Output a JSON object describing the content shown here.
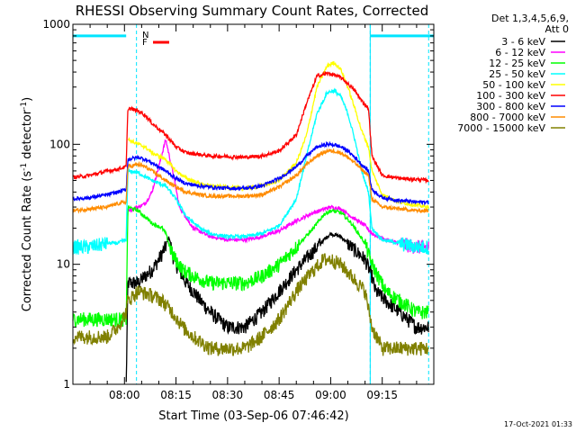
{
  "chart_data": {
    "type": "line",
    "title": "RHESSI Observing Summary Count Rates, Corrected",
    "xlabel": "Start Time (03-Sep-06 07:46:42)",
    "ylabel_parts": [
      "Corrected Count Rate (s",
      "-1",
      " detector",
      "-1",
      ")"
    ],
    "timestamp": "17-Oct-2021 01:33",
    "y_scale": "log",
    "ylim": [
      1,
      1000
    ],
    "xlim_minutes": [
      465,
      570
    ],
    "y_ticks": [
      {
        "v": 1,
        "label": "1"
      },
      {
        "v": 10,
        "label": "10"
      },
      {
        "v": 100,
        "label": "100"
      },
      {
        "v": 1000,
        "label": "1000"
      }
    ],
    "x_ticks": [
      {
        "t": 480,
        "label": "08:00"
      },
      {
        "t": 495,
        "label": "08:15"
      },
      {
        "t": 510,
        "label": "08:30"
      },
      {
        "t": 525,
        "label": "08:45"
      },
      {
        "t": 540,
        "label": "09:00"
      },
      {
        "t": 555,
        "label": "09:15"
      }
    ],
    "legend_header": [
      "Det 1,3,4,5,6,9,",
      "Att 0"
    ],
    "flags": [
      {
        "label": "N",
        "color": "#00e5ff"
      },
      {
        "label": "F",
        "color": "#ff0000"
      }
    ],
    "eclipse_bars": [
      {
        "t0": 465,
        "t1": 480.5
      },
      {
        "t0": 551.5,
        "t1": 570
      }
    ],
    "eclipse_level": 800,
    "dashed_markers": [
      483.5,
      551.5,
      568.5
    ],
    "solid_markers": [
      465,
      551.5
    ],
    "series": [
      {
        "name": "3 - 6 keV",
        "color": "#000000",
        "points": [
          [
            480.5,
            1
          ],
          [
            481,
            7
          ],
          [
            484,
            7
          ],
          [
            486,
            8
          ],
          [
            488,
            9
          ],
          [
            490,
            11
          ],
          [
            492,
            14
          ],
          [
            493,
            17
          ],
          [
            494,
            12
          ],
          [
            495,
            10
          ],
          [
            498,
            7
          ],
          [
            500,
            6
          ],
          [
            502,
            5
          ],
          [
            505,
            4
          ],
          [
            510,
            3
          ],
          [
            515,
            3
          ],
          [
            520,
            4
          ],
          [
            525,
            6
          ],
          [
            530,
            9
          ],
          [
            535,
            13
          ],
          [
            538,
            16
          ],
          [
            540,
            18
          ],
          [
            543,
            17
          ],
          [
            546,
            14
          ],
          [
            550,
            11
          ],
          [
            552,
            8
          ],
          [
            553,
            6
          ],
          [
            556,
            5
          ],
          [
            560,
            4
          ],
          [
            565,
            3
          ],
          [
            568.5,
            3
          ]
        ]
      },
      {
        "name": "6 - 12 keV",
        "color": "#ff00ff",
        "points": [
          [
            481,
            28
          ],
          [
            484,
            30
          ],
          [
            486,
            32
          ],
          [
            488,
            40
          ],
          [
            490,
            65
          ],
          [
            492,
            110
          ],
          [
            494,
            60
          ],
          [
            496,
            30
          ],
          [
            500,
            20
          ],
          [
            505,
            17
          ],
          [
            510,
            16
          ],
          [
            515,
            16
          ],
          [
            520,
            17
          ],
          [
            525,
            19
          ],
          [
            530,
            23
          ],
          [
            535,
            27
          ],
          [
            540,
            30
          ],
          [
            543,
            29
          ],
          [
            546,
            25
          ],
          [
            550,
            21
          ],
          [
            552,
            18
          ],
          [
            556,
            16
          ],
          [
            560,
            15
          ],
          [
            565,
            14
          ],
          [
            568.5,
            14
          ]
        ]
      },
      {
        "name": "12 - 25 keV",
        "color": "#00ff00",
        "points": [
          [
            465,
            3.5
          ],
          [
            470,
            3.5
          ],
          [
            475,
            3.5
          ],
          [
            478,
            3.5
          ],
          [
            480.5,
            3.5
          ],
          [
            481,
            30
          ],
          [
            484,
            28
          ],
          [
            488,
            22
          ],
          [
            491,
            20
          ],
          [
            492,
            18
          ],
          [
            494,
            12
          ],
          [
            497,
            9
          ],
          [
            500,
            8
          ],
          [
            505,
            7
          ],
          [
            510,
            7
          ],
          [
            515,
            7
          ],
          [
            520,
            8
          ],
          [
            525,
            10
          ],
          [
            530,
            14
          ],
          [
            535,
            20
          ],
          [
            538,
            26
          ],
          [
            540,
            28
          ],
          [
            543,
            27
          ],
          [
            546,
            22
          ],
          [
            550,
            15
          ],
          [
            552,
            10
          ],
          [
            556,
            6
          ],
          [
            560,
            5
          ],
          [
            565,
            4
          ],
          [
            568.5,
            4
          ]
        ]
      },
      {
        "name": "25 - 50 keV",
        "color": "#00ffff",
        "points": [
          [
            465,
            14
          ],
          [
            470,
            14
          ],
          [
            475,
            15
          ],
          [
            478,
            15
          ],
          [
            480.5,
            16
          ],
          [
            481,
            60
          ],
          [
            484,
            58
          ],
          [
            488,
            50
          ],
          [
            492,
            45
          ],
          [
            495,
            35
          ],
          [
            498,
            25
          ],
          [
            502,
            20
          ],
          [
            505,
            18
          ],
          [
            510,
            17
          ],
          [
            515,
            17
          ],
          [
            520,
            18
          ],
          [
            525,
            21
          ],
          [
            530,
            35
          ],
          [
            533,
            80
          ],
          [
            536,
            180
          ],
          [
            539,
            270
          ],
          [
            541,
            280
          ],
          [
            543,
            250
          ],
          [
            545,
            180
          ],
          [
            547,
            110
          ],
          [
            549,
            60
          ],
          [
            551,
            40
          ],
          [
            552,
            20
          ],
          [
            555,
            16
          ],
          [
            560,
            15
          ],
          [
            565,
            14
          ],
          [
            568.5,
            14
          ]
        ]
      },
      {
        "name": "50 - 100 keV",
        "color": "#ffff00",
        "points": [
          [
            481,
            110
          ],
          [
            484,
            100
          ],
          [
            486,
            95
          ],
          [
            488,
            85
          ],
          [
            492,
            75
          ],
          [
            495,
            60
          ],
          [
            498,
            52
          ],
          [
            502,
            47
          ],
          [
            505,
            45
          ],
          [
            510,
            44
          ],
          [
            515,
            43
          ],
          [
            520,
            45
          ],
          [
            525,
            50
          ],
          [
            530,
            70
          ],
          [
            533,
            120
          ],
          [
            536,
            300
          ],
          [
            539,
            450
          ],
          [
            541,
            480
          ],
          [
            543,
            420
          ],
          [
            545,
            300
          ],
          [
            547,
            200
          ],
          [
            549,
            130
          ],
          [
            551,
            95
          ],
          [
            552,
            60
          ],
          [
            555,
            38
          ],
          [
            560,
            33
          ],
          [
            565,
            31
          ],
          [
            568.5,
            30
          ]
        ]
      },
      {
        "name": "100 - 300 keV",
        "color": "#ff0000",
        "points": [
          [
            465,
            53
          ],
          [
            470,
            55
          ],
          [
            475,
            60
          ],
          [
            478,
            62
          ],
          [
            480.5,
            65
          ],
          [
            481,
            200
          ],
          [
            484,
            190
          ],
          [
            486,
            175
          ],
          [
            488,
            150
          ],
          [
            492,
            120
          ],
          [
            495,
            95
          ],
          [
            498,
            85
          ],
          [
            502,
            82
          ],
          [
            505,
            80
          ],
          [
            510,
            79
          ],
          [
            515,
            78
          ],
          [
            520,
            80
          ],
          [
            525,
            88
          ],
          [
            530,
            120
          ],
          [
            533,
            220
          ],
          [
            536,
            370
          ],
          [
            539,
            390
          ],
          [
            541,
            380
          ],
          [
            543,
            360
          ],
          [
            545,
            320
          ],
          [
            547,
            280
          ],
          [
            549,
            230
          ],
          [
            551,
            200
          ],
          [
            552,
            80
          ],
          [
            555,
            55
          ],
          [
            560,
            52
          ],
          [
            565,
            51
          ],
          [
            568.5,
            50
          ]
        ]
      },
      {
        "name": "300 - 800 keV",
        "color": "#0000ff",
        "points": [
          [
            465,
            35
          ],
          [
            470,
            36
          ],
          [
            475,
            38
          ],
          [
            478,
            40
          ],
          [
            480.5,
            42
          ],
          [
            481,
            75
          ],
          [
            484,
            78
          ],
          [
            486,
            75
          ],
          [
            488,
            70
          ],
          [
            492,
            60
          ],
          [
            495,
            52
          ],
          [
            498,
            47
          ],
          [
            502,
            45
          ],
          [
            505,
            44
          ],
          [
            510,
            43
          ],
          [
            515,
            43
          ],
          [
            520,
            45
          ],
          [
            525,
            52
          ],
          [
            530,
            65
          ],
          [
            533,
            80
          ],
          [
            536,
            95
          ],
          [
            539,
            100
          ],
          [
            541,
            99
          ],
          [
            543,
            95
          ],
          [
            545,
            88
          ],
          [
            547,
            78
          ],
          [
            549,
            68
          ],
          [
            551,
            60
          ],
          [
            552,
            42
          ],
          [
            555,
            36
          ],
          [
            560,
            34
          ],
          [
            565,
            33
          ],
          [
            568.5,
            33
          ]
        ]
      },
      {
        "name": "800 - 7000 keV",
        "color": "#ff8c00",
        "points": [
          [
            465,
            28
          ],
          [
            470,
            29
          ],
          [
            475,
            30
          ],
          [
            478,
            32
          ],
          [
            480.5,
            33
          ],
          [
            481,
            65
          ],
          [
            484,
            68
          ],
          [
            486,
            65
          ],
          [
            488,
            60
          ],
          [
            492,
            50
          ],
          [
            495,
            44
          ],
          [
            498,
            40
          ],
          [
            502,
            38
          ],
          [
            505,
            37
          ],
          [
            510,
            37
          ],
          [
            515,
            37
          ],
          [
            520,
            38
          ],
          [
            525,
            44
          ],
          [
            530,
            55
          ],
          [
            533,
            68
          ],
          [
            536,
            80
          ],
          [
            539,
            88
          ],
          [
            541,
            88
          ],
          [
            543,
            85
          ],
          [
            545,
            78
          ],
          [
            547,
            70
          ],
          [
            549,
            62
          ],
          [
            551,
            55
          ],
          [
            552,
            35
          ],
          [
            555,
            30
          ],
          [
            560,
            29
          ],
          [
            565,
            28
          ],
          [
            568.5,
            28
          ]
        ]
      },
      {
        "name": "7000 - 15000 keV",
        "color": "#808000",
        "points": [
          [
            465,
            2.5
          ],
          [
            470,
            2.5
          ],
          [
            475,
            2.5
          ],
          [
            478,
            3
          ],
          [
            480.5,
            4
          ],
          [
            481,
            5
          ],
          [
            484,
            6
          ],
          [
            488,
            5.5
          ],
          [
            491,
            5
          ],
          [
            494,
            4
          ],
          [
            497,
            3
          ],
          [
            500,
            2.5
          ],
          [
            505,
            2
          ],
          [
            510,
            2
          ],
          [
            515,
            2
          ],
          [
            520,
            2.5
          ],
          [
            525,
            3.5
          ],
          [
            530,
            6
          ],
          [
            535,
            9
          ],
          [
            538,
            11
          ],
          [
            540,
            11
          ],
          [
            543,
            10
          ],
          [
            546,
            8
          ],
          [
            550,
            6
          ],
          [
            552,
            3
          ],
          [
            555,
            2
          ],
          [
            560,
            2
          ],
          [
            565,
            2
          ],
          [
            568.5,
            2
          ]
        ]
      }
    ]
  }
}
